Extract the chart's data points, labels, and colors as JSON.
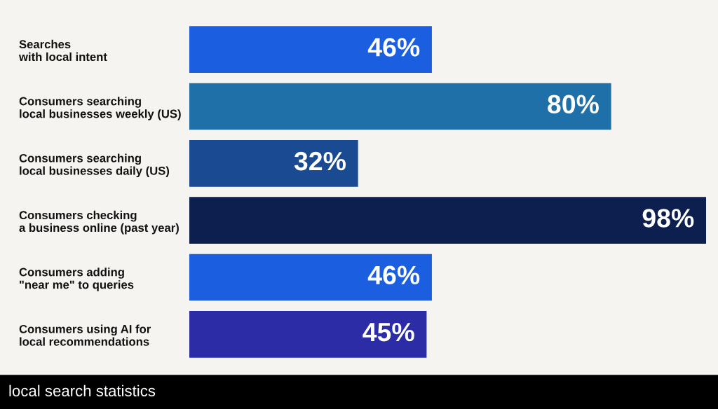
{
  "chart_data": {
    "type": "bar",
    "orientation": "horizontal",
    "data_labels": true,
    "grid": false,
    "legend": false,
    "categories": [
      "Searches\nwith local intent",
      "Consumers searching\nlocal businesses weekly (US)",
      "Consumers searching\nlocal businesses daily (US)",
      "Consumers checking\na business online (past year)",
      "Consumers adding\n\"near me\" to queries",
      "Consumers using AI for\nlocal recommendations"
    ],
    "values": [
      46,
      80,
      32,
      98,
      46,
      45
    ],
    "value_labels": [
      "46%",
      "80%",
      "32%",
      "98%",
      "46%",
      "45%"
    ],
    "colors": [
      "#1b5fe0",
      "#1f6fa8",
      "#1a4a92",
      "#0c1f4e",
      "#1b5fe0",
      "#2b2ca6"
    ],
    "annotations": [
      "local search statistics"
    ]
  }
}
